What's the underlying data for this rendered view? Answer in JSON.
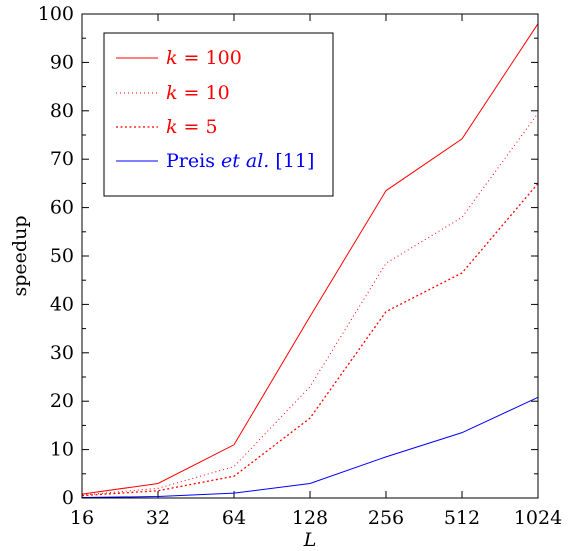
{
  "chart_data": {
    "type": "line",
    "xlabel": "L",
    "ylabel": "speedup",
    "x_scale": "log2",
    "x": [
      16,
      32,
      64,
      128,
      256,
      512,
      1024
    ],
    "x_tick_labels": [
      "16",
      "32",
      "64",
      "128",
      "256",
      "512",
      "1024"
    ],
    "ylim": [
      0,
      100
    ],
    "y_ticks": [
      0,
      10,
      20,
      30,
      40,
      50,
      60,
      70,
      80,
      90,
      100
    ],
    "grid": false,
    "legend_position": "top-left",
    "series": [
      {
        "name": "k = 100",
        "name_var": "k",
        "name_rest": " = 100",
        "color": "#ff0000",
        "style": "solid",
        "values": [
          0.8,
          3.0,
          11.0,
          37.5,
          63.5,
          74.2,
          98.0
        ]
      },
      {
        "name": "k = 10",
        "name_var": "k",
        "name_rest": " = 10",
        "color": "#ff0000",
        "style": "dotted-fine",
        "values": [
          0.6,
          2.0,
          6.5,
          23.0,
          48.5,
          58.0,
          79.5
        ]
      },
      {
        "name": "k = 5",
        "name_var": "k",
        "name_rest": " = 5",
        "color": "#ff0000",
        "style": "dotted",
        "values": [
          0.5,
          1.5,
          4.5,
          16.5,
          38.5,
          46.5,
          65.0
        ]
      },
      {
        "name": "Preis et al. [11]",
        "name_pre": "Preis ",
        "name_em": "et al.",
        "name_post": " [11]",
        "color": "#0000ff",
        "style": "solid",
        "values": [
          0.1,
          0.3,
          1.0,
          3.0,
          8.5,
          13.5,
          20.8
        ]
      }
    ]
  }
}
